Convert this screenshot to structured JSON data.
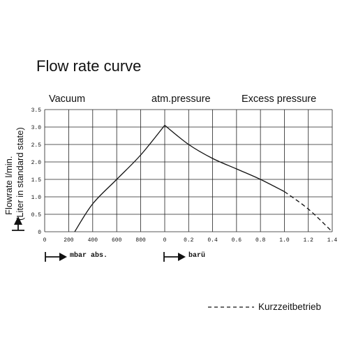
{
  "title": "Flow rate curve",
  "regions": [
    "Vacuum",
    "atm.pressure",
    "Excess pressure"
  ],
  "units": {
    "vacuum": "mbar abs.",
    "pressure": "barü"
  },
  "legend": {
    "dashed_label": "Kurzzeitbetrieb"
  },
  "chart_data": {
    "type": "line",
    "title": "Flow rate curve",
    "ylabel": "Flowrate l/min.",
    "ylabel_sub": "(Liter in standard state)",
    "ylim": [
      0,
      3.5
    ],
    "yticks": [
      "0",
      "0.5",
      "1.0",
      "1.5",
      "2.0",
      "2.5",
      "3.0",
      "3.5"
    ],
    "grid": true,
    "x_axes": [
      {
        "name": "vacuum",
        "unit": "mbar abs.",
        "range": [
          0,
          1000
        ],
        "ticks": [
          "0",
          "200",
          "400",
          "600",
          "800",
          "0"
        ]
      },
      {
        "name": "pressure",
        "unit": "barü",
        "range": [
          0,
          1.4
        ],
        "ticks": [
          "0.2",
          "0.4",
          "0.6",
          "0.8",
          "1.0",
          "1.2",
          "1.4"
        ]
      }
    ],
    "series": [
      {
        "style": "solid",
        "axis": "vacuum",
        "x": [
          250,
          400,
          600,
          800,
          1000
        ],
        "y": [
          0,
          0.8,
          1.5,
          2.2,
          3.05
        ]
      },
      {
        "style": "solid",
        "axis": "pressure",
        "x": [
          0,
          0.2,
          0.4,
          0.6,
          0.8,
          1.0
        ],
        "y": [
          3.05,
          2.5,
          2.1,
          1.8,
          1.5,
          1.15
        ]
      },
      {
        "style": "dashed",
        "axis": "pressure",
        "x": [
          1.0,
          1.2,
          1.4
        ],
        "y": [
          1.15,
          0.65,
          0
        ]
      }
    ]
  }
}
